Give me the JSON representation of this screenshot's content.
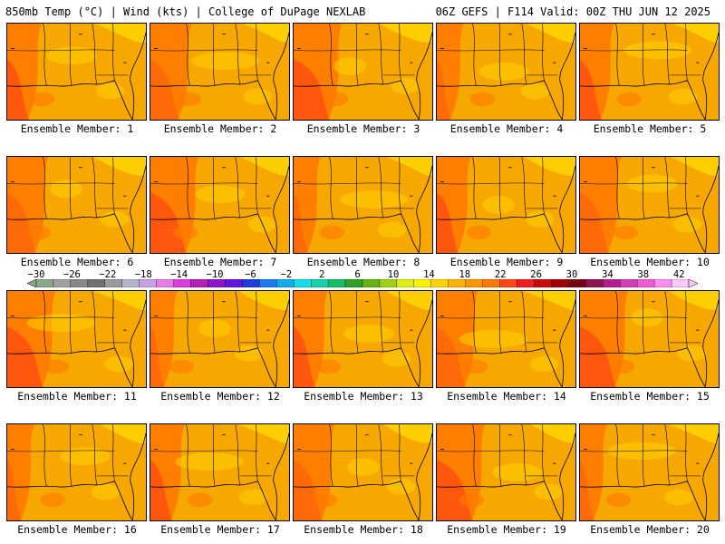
{
  "header": {
    "left": "850mb Temp (°C) | Wind (kts) | College of DuPage NEXLAB",
    "right": "06Z GEFS | F114 Valid: 00Z THU JUN 12 2025"
  },
  "members": [
    {
      "label": "Ensemble Member: 1"
    },
    {
      "label": "Ensemble Member: 2"
    },
    {
      "label": "Ensemble Member: 3"
    },
    {
      "label": "Ensemble Member: 4"
    },
    {
      "label": "Ensemble Member: 5"
    },
    {
      "label": "Ensemble Member: 6"
    },
    {
      "label": "Ensemble Member: 7"
    },
    {
      "label": "Ensemble Member: 8"
    },
    {
      "label": "Ensemble Member: 9"
    },
    {
      "label": "Ensemble Member: 10"
    },
    {
      "label": "Ensemble Member: 11"
    },
    {
      "label": "Ensemble Member: 12"
    },
    {
      "label": "Ensemble Member: 13"
    },
    {
      "label": "Ensemble Member: 14"
    },
    {
      "label": "Ensemble Member: 15"
    },
    {
      "label": "Ensemble Member: 16"
    },
    {
      "label": "Ensemble Member: 17"
    },
    {
      "label": "Ensemble Member: 18"
    },
    {
      "label": "Ensemble Member: 19"
    },
    {
      "label": "Ensemble Member: 20"
    }
  ],
  "colorbar": {
    "ticks": [
      "−30",
      "−26",
      "−22",
      "−18",
      "−14",
      "−10",
      "−6",
      "−2",
      "2",
      "6",
      "10",
      "14",
      "18",
      "22",
      "26",
      "30",
      "34",
      "38",
      "42"
    ],
    "colors": [
      "#8aa58a",
      "#a0a0a0",
      "#888888",
      "#707070",
      "#9a9a9a",
      "#b4b4c8",
      "#c8a0e6",
      "#e67ce6",
      "#dc3cdc",
      "#b41eb4",
      "#8c14c8",
      "#6414dc",
      "#1e3cdc",
      "#1e78f0",
      "#14aaf0",
      "#14dce6",
      "#14d2aa",
      "#14be64",
      "#32a028",
      "#64b414",
      "#a0d214",
      "#dcf014",
      "#fff000",
      "#ffd200",
      "#ffb400",
      "#ff9600",
      "#ff7800",
      "#ff4614",
      "#f01e1e",
      "#c80a0a",
      "#a00000",
      "#780014",
      "#8c1450",
      "#b41e8c",
      "#d23cb4",
      "#f05ad2",
      "#ff8cf0",
      "#ffc8ff"
    ]
  },
  "colors": {
    "warm_fill": "#f7a800",
    "hot_fill": "#ff7800",
    "very_hot_fill": "#ff4614",
    "cool_fill": "#ffd200",
    "coastline": "#000000"
  }
}
